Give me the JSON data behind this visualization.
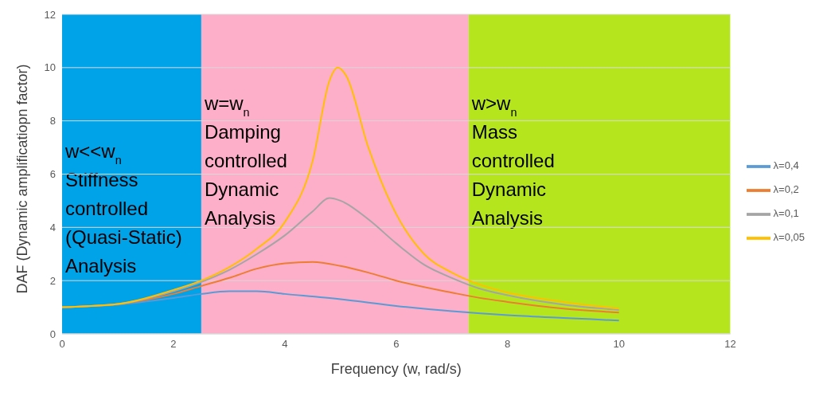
{
  "chart_data": {
    "type": "line",
    "xlabel": "Frequency (w, rad/s)",
    "ylabel": "DAF (Dynamic amplificatiopn factor)",
    "xlim": [
      0,
      12
    ],
    "xticks": [
      0,
      2,
      4,
      6,
      8,
      10,
      12
    ],
    "ylim": [
      0,
      12
    ],
    "yticks": [
      0,
      2,
      4,
      6,
      8,
      10,
      12
    ],
    "grid": "y",
    "legend": "right",
    "marker": "none",
    "line_style": "solid",
    "bands": [
      {
        "axis": "x",
        "from": 0,
        "to": 2.5,
        "color": "#00a2e8",
        "label": "w<<w$_{n}$\nStiffness\ncontrolled\n(Quasi-Static)\nAnalysis"
      },
      {
        "axis": "x",
        "from": 2.5,
        "to": 7.3,
        "color": "#fdaec9",
        "label": "w=w$_{n}$\nDamping\ncontrolled\nDynamic\nAnalysis"
      },
      {
        "axis": "x",
        "from": 7.3,
        "to": 12,
        "color": "#b5e61d",
        "label": "w>w$_{n}$\nMass\ncontrolled\nDynamic\nAnalysis"
      }
    ],
    "series": [
      {
        "name": "λ=0,4",
        "color": "#5b9bd5",
        "x": [
          0,
          1,
          2,
          2.5,
          3,
          3.5,
          4,
          5,
          6,
          7,
          8,
          9,
          10
        ],
        "values": [
          1.0,
          1.1,
          1.35,
          1.5,
          1.6,
          1.6,
          1.5,
          1.3,
          1.05,
          0.85,
          0.7,
          0.6,
          0.5
        ]
      },
      {
        "name": "λ=0,2",
        "color": "#ed7d31",
        "x": [
          0,
          1,
          2,
          2.5,
          3,
          3.5,
          4,
          4.5,
          5,
          5.5,
          6,
          7,
          7.5,
          8,
          9,
          10
        ],
        "values": [
          1.0,
          1.12,
          1.5,
          1.8,
          2.1,
          2.45,
          2.65,
          2.7,
          2.55,
          2.3,
          2.0,
          1.55,
          1.35,
          1.2,
          0.95,
          0.8
        ]
      },
      {
        "name": "λ=0,1",
        "color": "#a5a5a5",
        "x": [
          0,
          1,
          2,
          2.5,
          3,
          3.5,
          4,
          4.5,
          4.8,
          5,
          5.5,
          6,
          6.5,
          7,
          7.5,
          8,
          9,
          10
        ],
        "values": [
          1.0,
          1.12,
          1.6,
          1.95,
          2.4,
          3.0,
          3.7,
          4.6,
          5.1,
          5.0,
          4.3,
          3.4,
          2.6,
          2.1,
          1.7,
          1.45,
          1.1,
          0.9
        ]
      },
      {
        "name": "λ=0,05",
        "color": "#ffc000",
        "x": [
          0,
          1,
          2,
          2.5,
          3,
          3.5,
          4,
          4.5,
          4.8,
          4.95,
          5.1,
          5.5,
          6,
          6.5,
          7,
          7.5,
          8,
          9,
          10
        ],
        "values": [
          1.0,
          1.12,
          1.65,
          2.0,
          2.5,
          3.2,
          4.2,
          6.5,
          9.5,
          10.0,
          9.7,
          7.0,
          4.5,
          3.0,
          2.3,
          1.85,
          1.55,
          1.2,
          0.95
        ]
      }
    ]
  }
}
